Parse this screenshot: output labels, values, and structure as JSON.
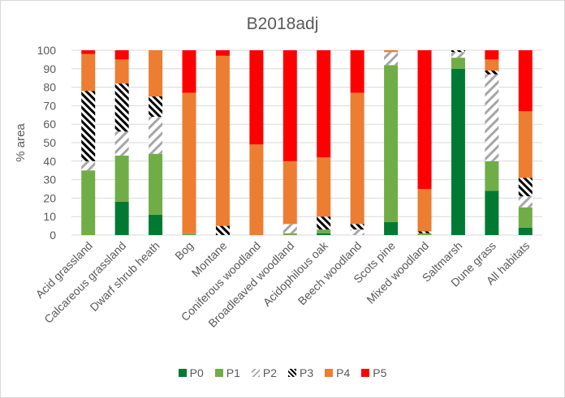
{
  "chart_data": {
    "type": "bar",
    "stacked": true,
    "title": "B2018adj",
    "xlabel": "",
    "ylabel": "% area",
    "ylim": [
      0,
      100
    ],
    "yticks": [
      0,
      10,
      20,
      30,
      40,
      50,
      60,
      70,
      80,
      90,
      100
    ],
    "grid": true,
    "legend_position": "bottom",
    "categories": [
      "Acid grassland",
      "Calcareous grassland",
      "Dwarf shrub heath",
      "Bog",
      "Montane",
      "Coniferous woodland",
      "Broadleaved woodland",
      "Acidophilous oak",
      "Beech woodland",
      "Scots pine",
      "Mixed woodland",
      "Saltmarsh",
      "Dune grass",
      "All habitats"
    ],
    "series": [
      {
        "name": "P0",
        "color": "#007a33",
        "pattern": "solid",
        "values": [
          0,
          18,
          11,
          0,
          0,
          0,
          0,
          1,
          0,
          7,
          0,
          90,
          24,
          4
        ]
      },
      {
        "name": "P1",
        "color": "#70ad47",
        "pattern": "solid",
        "values": [
          35,
          25,
          33,
          1,
          0,
          0,
          1,
          2,
          0,
          85,
          1,
          6,
          16,
          11
        ]
      },
      {
        "name": "P2",
        "color": "#a6a6a6",
        "pattern": "light-diagonal",
        "values": [
          5,
          13,
          20,
          0,
          0,
          0,
          5,
          0,
          3,
          7,
          0,
          3,
          47,
          6
        ]
      },
      {
        "name": "P3",
        "color": "#000000",
        "pattern": "dark-diagonal",
        "values": [
          38,
          26,
          11,
          0,
          5,
          0,
          0,
          7,
          3,
          0,
          1,
          1,
          2,
          10
        ]
      },
      {
        "name": "P4",
        "color": "#ed7d31",
        "pattern": "solid",
        "values": [
          20,
          13,
          25,
          76,
          92,
          49,
          34,
          32,
          71,
          1,
          23,
          0,
          6,
          36
        ]
      },
      {
        "name": "P5",
        "color": "#ff0000",
        "pattern": "solid",
        "values": [
          2,
          5,
          0,
          23,
          3,
          51,
          60,
          58,
          23,
          0,
          75,
          0,
          5,
          33
        ]
      }
    ]
  }
}
